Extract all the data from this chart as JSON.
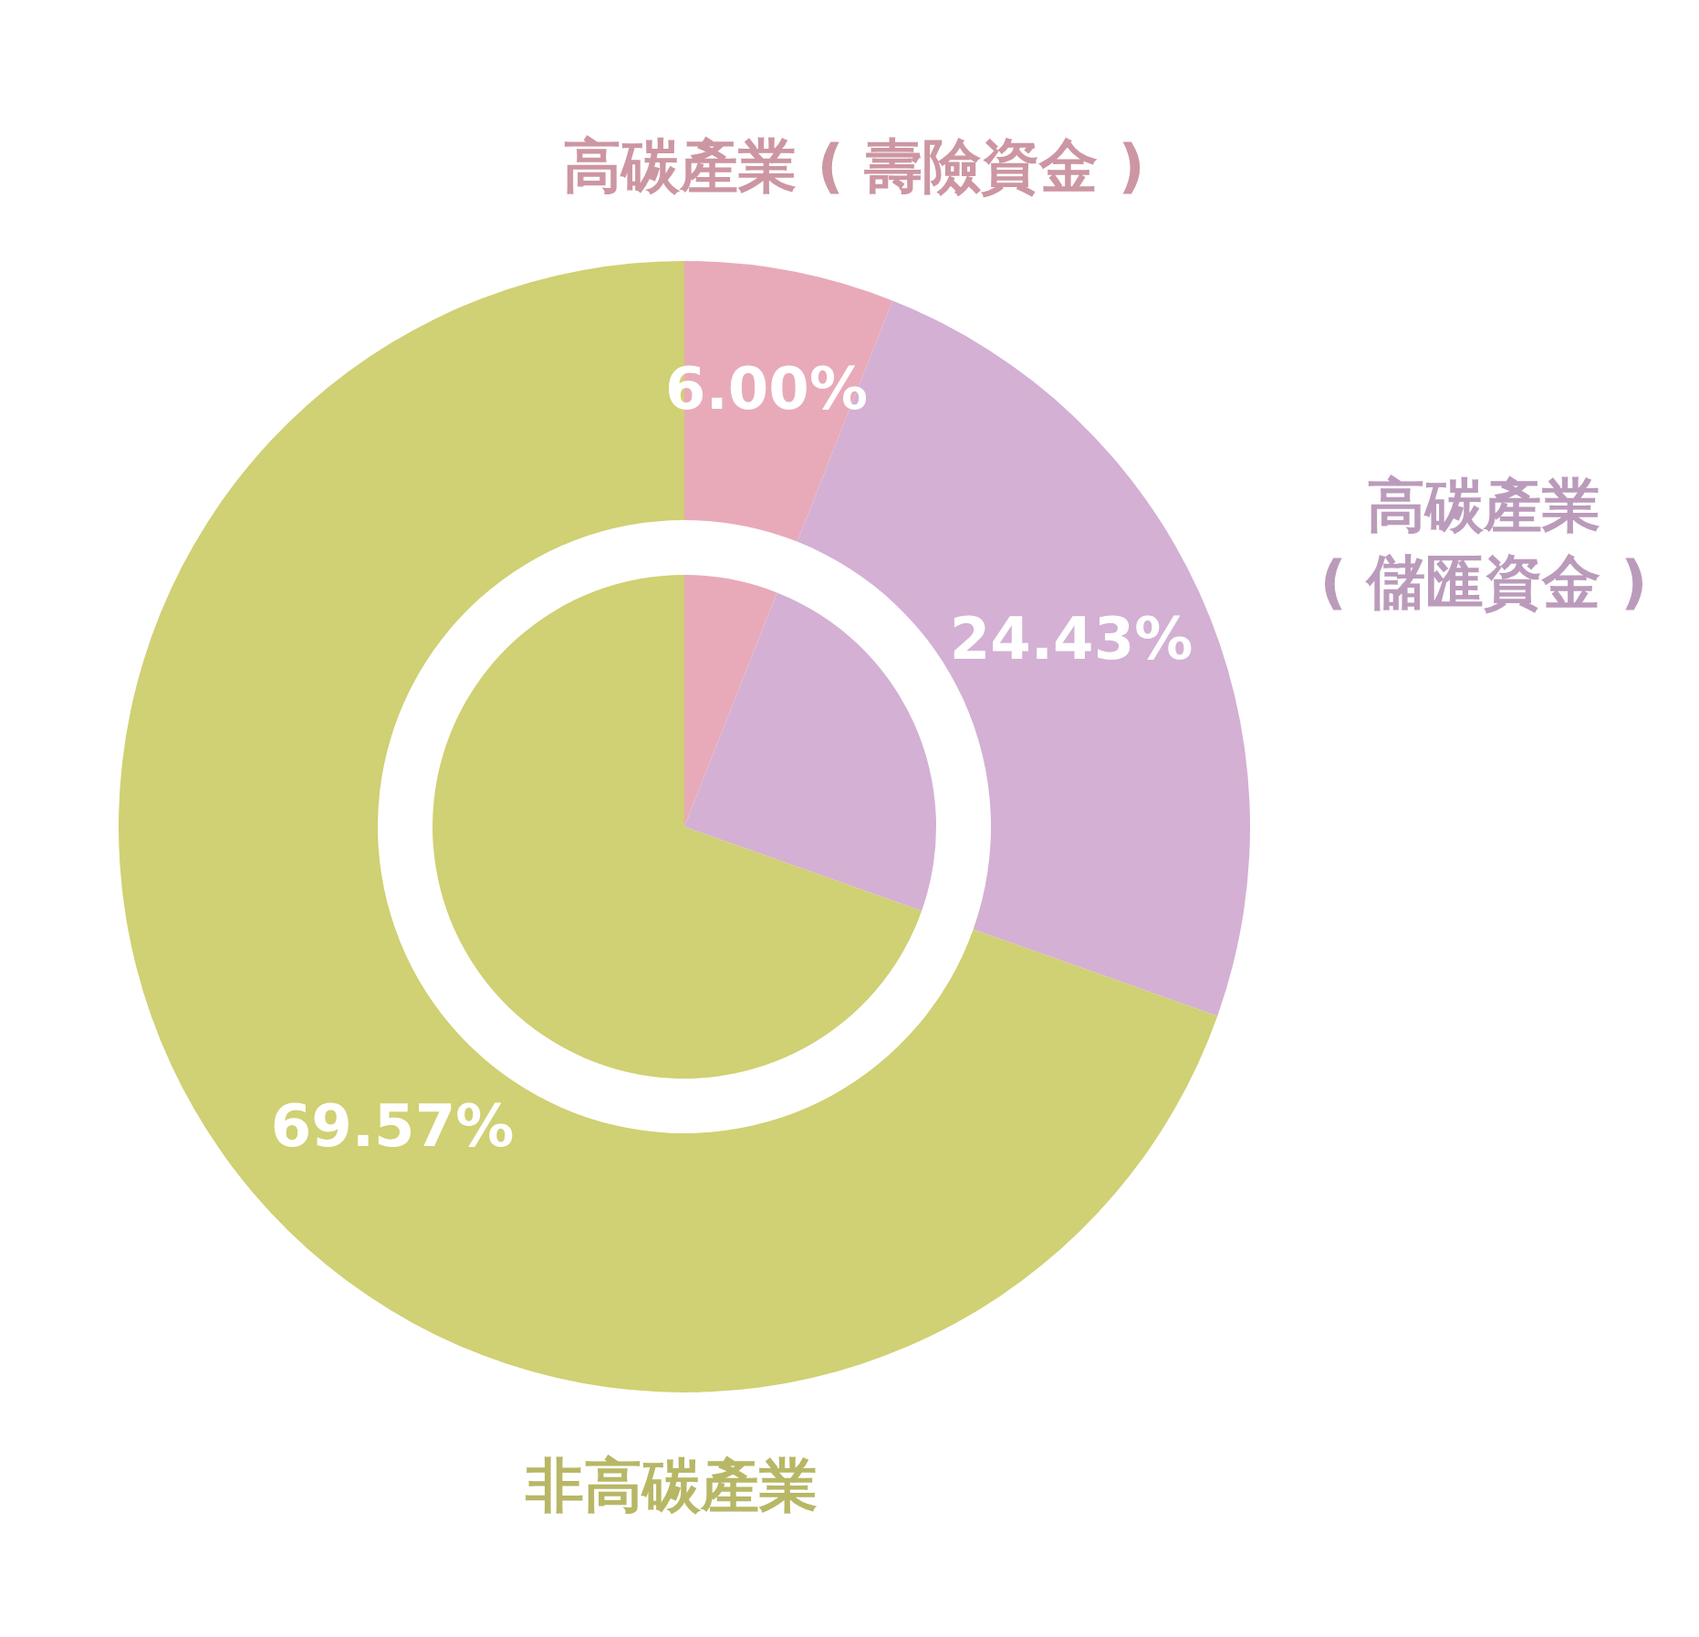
{
  "chart_data": {
    "type": "donut",
    "categories": [
      "高碳產業 ( 壽險資金 )",
      "高碳產業 ( 儲匯資金 )",
      "非高碳產業"
    ],
    "series": [
      {
        "values": [
          6.0,
          24.43,
          69.57
        ]
      },
      {
        "values": [
          6.0,
          24.43,
          69.57
        ]
      }
    ],
    "value_labels": [
      "6.00%",
      "24.43%",
      "69.57%"
    ],
    "colors": [
      "#e8aab8",
      "#d4b0d4",
      "#d0d074"
    ]
  }
}
